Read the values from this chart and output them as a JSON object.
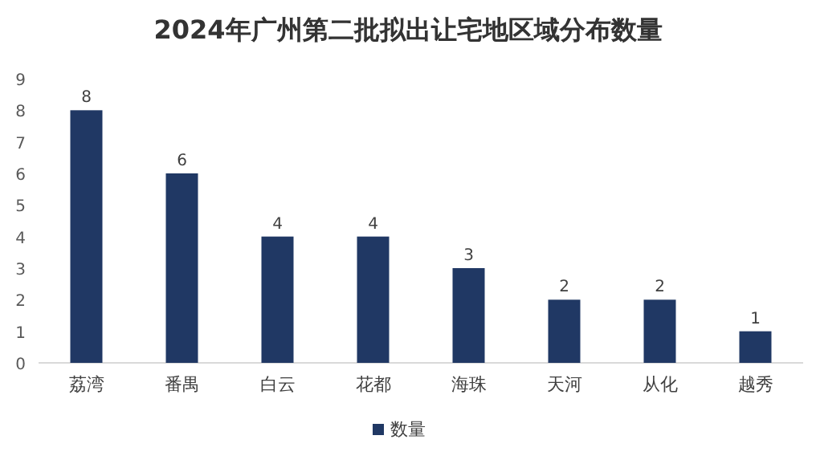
{
  "chart_data": {
    "type": "bar",
    "title": "2024年广州第二批拟出让宅地区域分布数量",
    "categories": [
      "荔湾",
      "番禺",
      "白云",
      "花都",
      "海珠",
      "天河",
      "从化",
      "越秀"
    ],
    "series": [
      {
        "name": "数量",
        "color": "#203864",
        "values": [
          8,
          6,
          4,
          4,
          3,
          2,
          2,
          1
        ]
      }
    ],
    "ylim": [
      0,
      9
    ],
    "yticks": [
      0,
      1,
      2,
      3,
      4,
      5,
      6,
      7,
      8,
      9
    ],
    "data_labels": true,
    "legend": "bottom",
    "grid": false
  }
}
